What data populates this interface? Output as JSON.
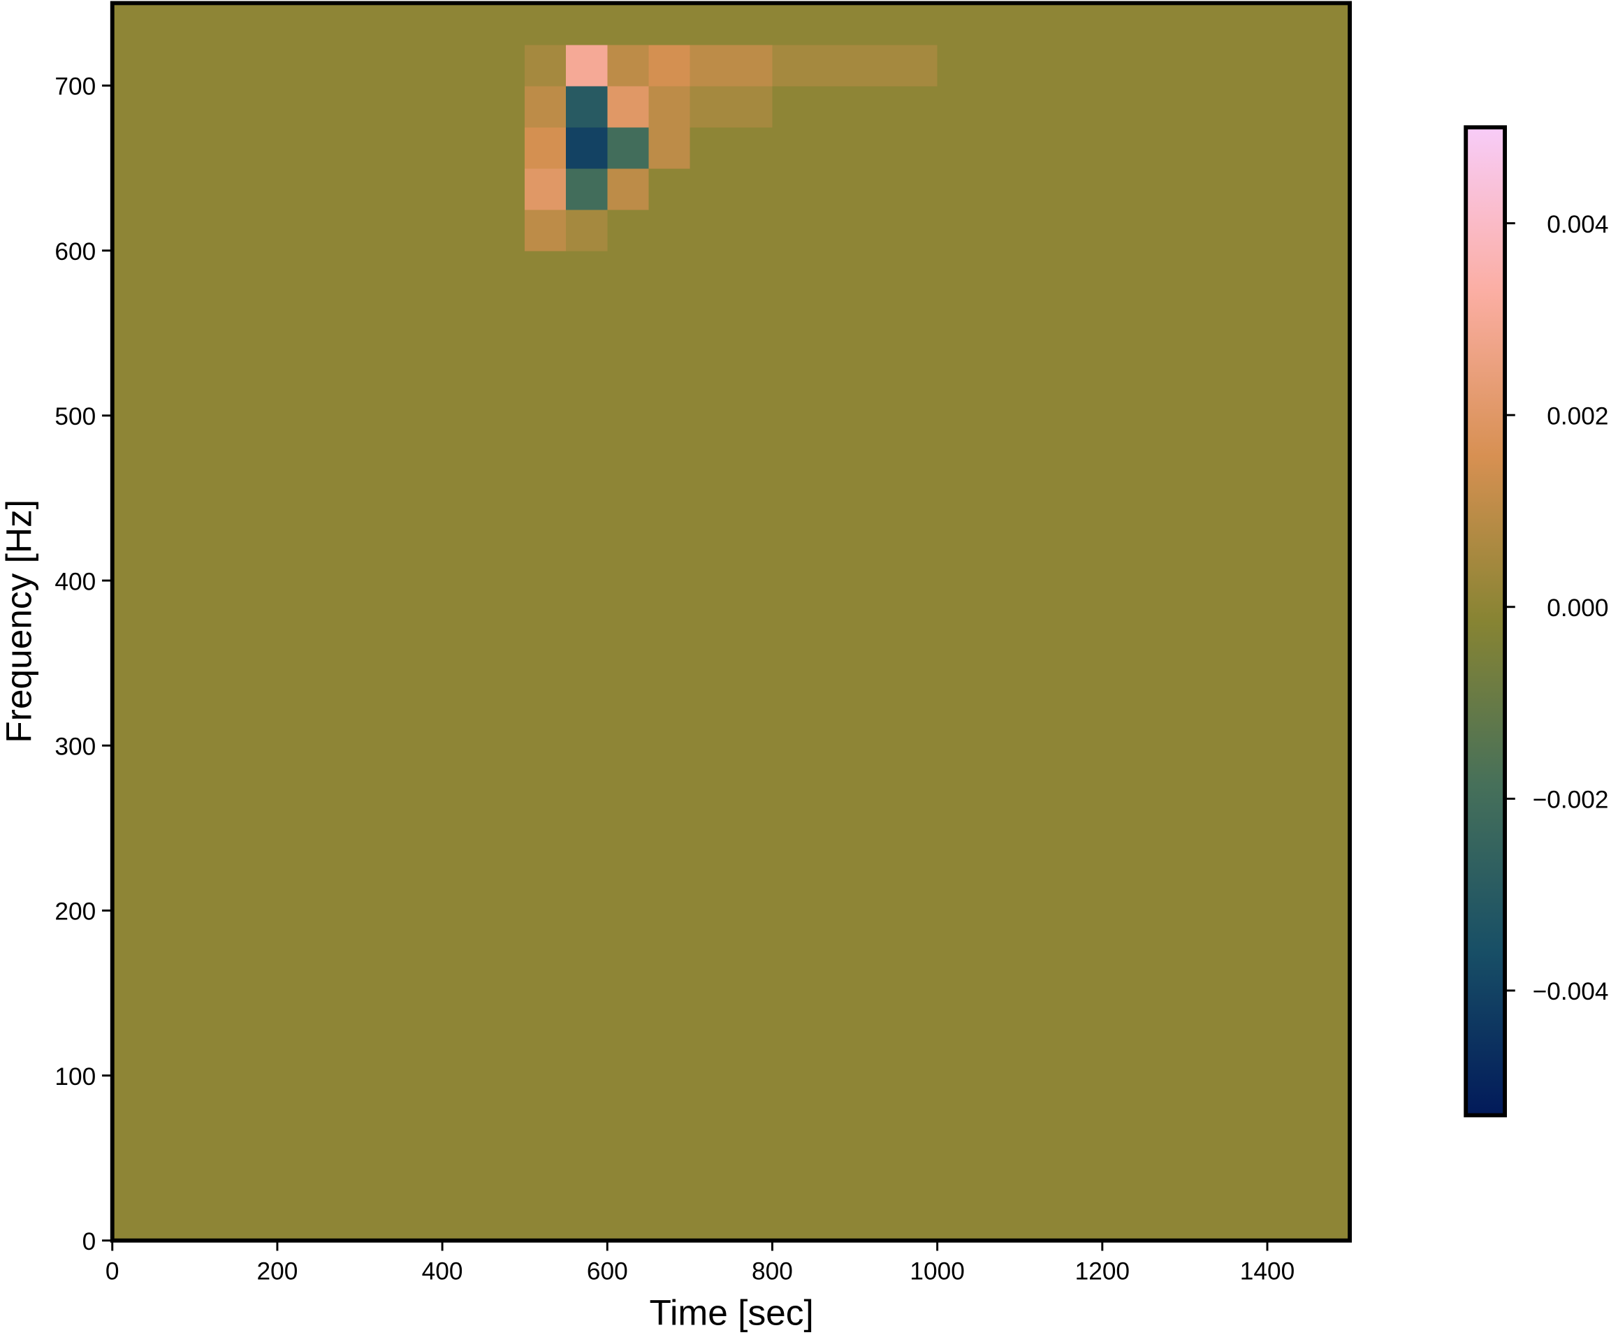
{
  "chart_data": {
    "type": "heatmap",
    "xlabel": "Time [sec]",
    "ylabel": "Frequency [Hz]",
    "xlim": [
      0,
      1500
    ],
    "xticks": [
      0,
      200,
      400,
      600,
      800,
      1000,
      1200,
      1400
    ],
    "ylim": [
      0,
      750
    ],
    "yticks": [
      0,
      100,
      200,
      300,
      400,
      500,
      600,
      700
    ],
    "x_edges": [
      0,
      500,
      550,
      600,
      650,
      700,
      800,
      1000,
      1500
    ],
    "y_edges": [
      0,
      600,
      625,
      650,
      675,
      700,
      725,
      750
    ],
    "z": [
      [
        0,
        0,
        0,
        0,
        0,
        0,
        0,
        0
      ],
      [
        0,
        0.001,
        0.0005,
        0,
        0,
        0,
        0,
        0
      ],
      [
        0,
        0.002,
        -0.002,
        0.001,
        0,
        0,
        0,
        0
      ],
      [
        0,
        0.0015,
        -0.004,
        -0.002,
        0.001,
        0,
        0,
        0
      ],
      [
        0,
        0.001,
        -0.003,
        0.002,
        0.001,
        0.0005,
        0,
        0
      ],
      [
        0,
        0.0005,
        0.003,
        0.001,
        0.0015,
        0.001,
        0.0005,
        0
      ],
      [
        0,
        0,
        0,
        0,
        0,
        0,
        0,
        0
      ]
    ],
    "colormap": [
      "#021a5a",
      "#184f66",
      "#46705a",
      "#878433",
      "#d79052",
      "#fbaea3",
      "#f8ccf8"
    ],
    "clim": [
      -0.0053,
      0.005
    ],
    "cticks": [
      {
        "value": -0.004,
        "label": "−0.004"
      },
      {
        "value": -0.002,
        "label": "−0.002"
      },
      {
        "value": 0,
        "label": "0.000"
      },
      0.002,
      0.004
    ]
  }
}
